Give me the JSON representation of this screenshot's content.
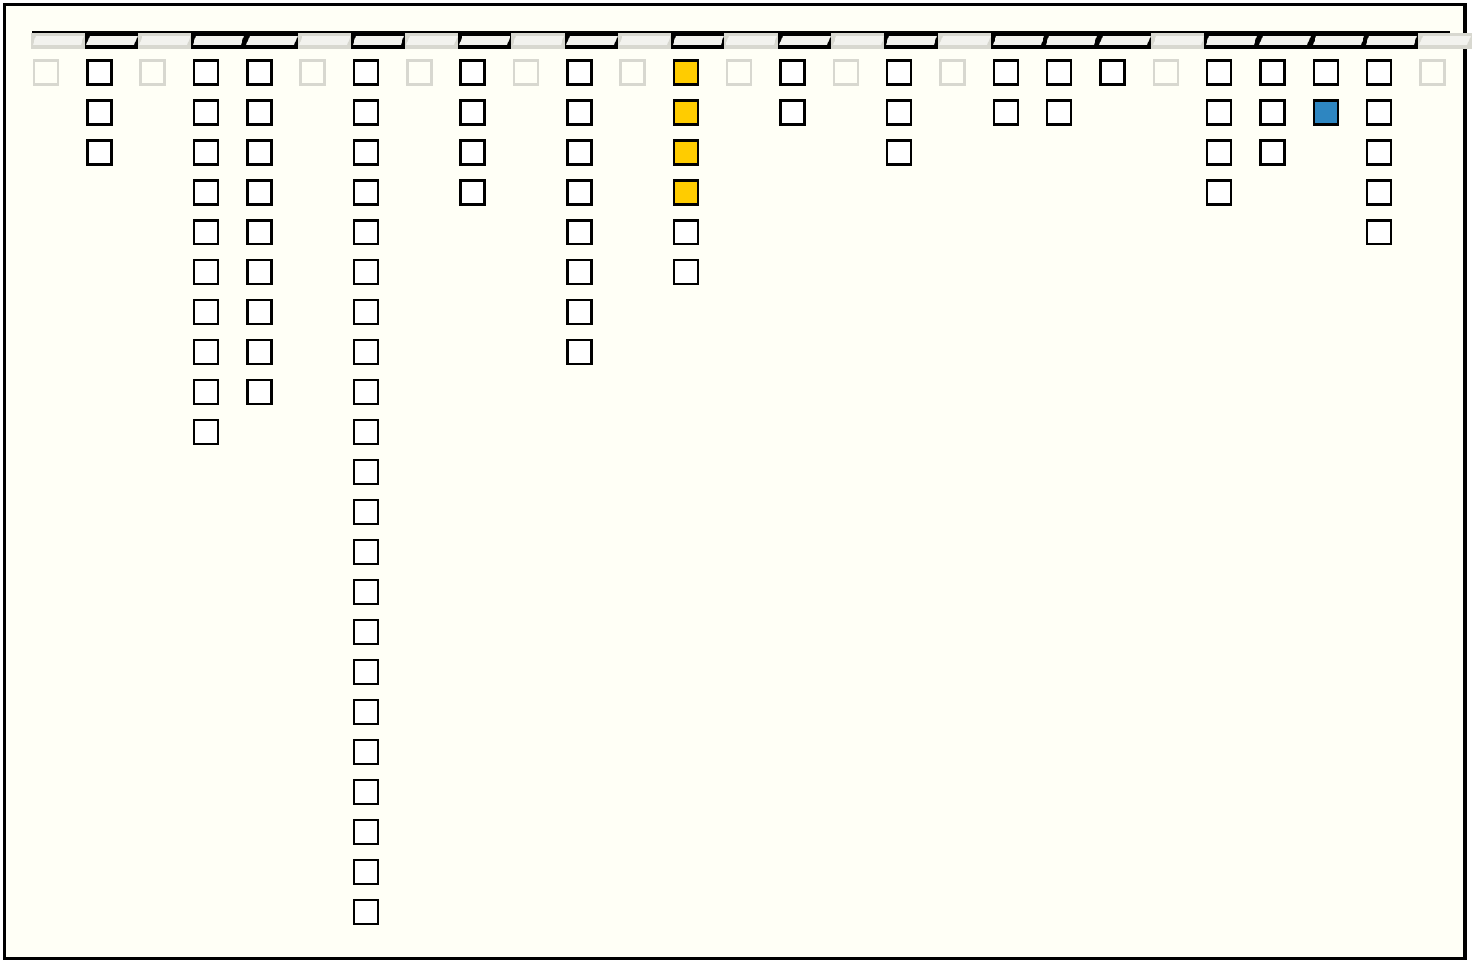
{
  "colors": {
    "background": "#fffff6",
    "active": "#000000",
    "empty": "#d8d8d0",
    "highlight_yellow": "#ffcc00",
    "highlight_blue": "#2e86c1",
    "cell": "#ffffff"
  },
  "columns": [
    {
      "count": 0
    },
    {
      "count": 3
    },
    {
      "count": 0
    },
    {
      "count": 10
    },
    {
      "count": 9
    },
    {
      "count": 0
    },
    {
      "count": 22
    },
    {
      "count": 0
    },
    {
      "count": 4
    },
    {
      "count": 0
    },
    {
      "count": 8
    },
    {
      "count": 0
    },
    {
      "count": 6,
      "yellow": [
        0,
        1,
        2,
        3
      ]
    },
    {
      "count": 0
    },
    {
      "count": 2
    },
    {
      "count": 0
    },
    {
      "count": 3
    },
    {
      "count": 0
    },
    {
      "count": 2
    },
    {
      "count": 2
    },
    {
      "count": 1
    },
    {
      "count": 0
    },
    {
      "count": 4
    },
    {
      "count": 3
    },
    {
      "count": 2,
      "blue": [
        1
      ]
    },
    {
      "count": 5
    },
    {
      "count": 0
    }
  ]
}
